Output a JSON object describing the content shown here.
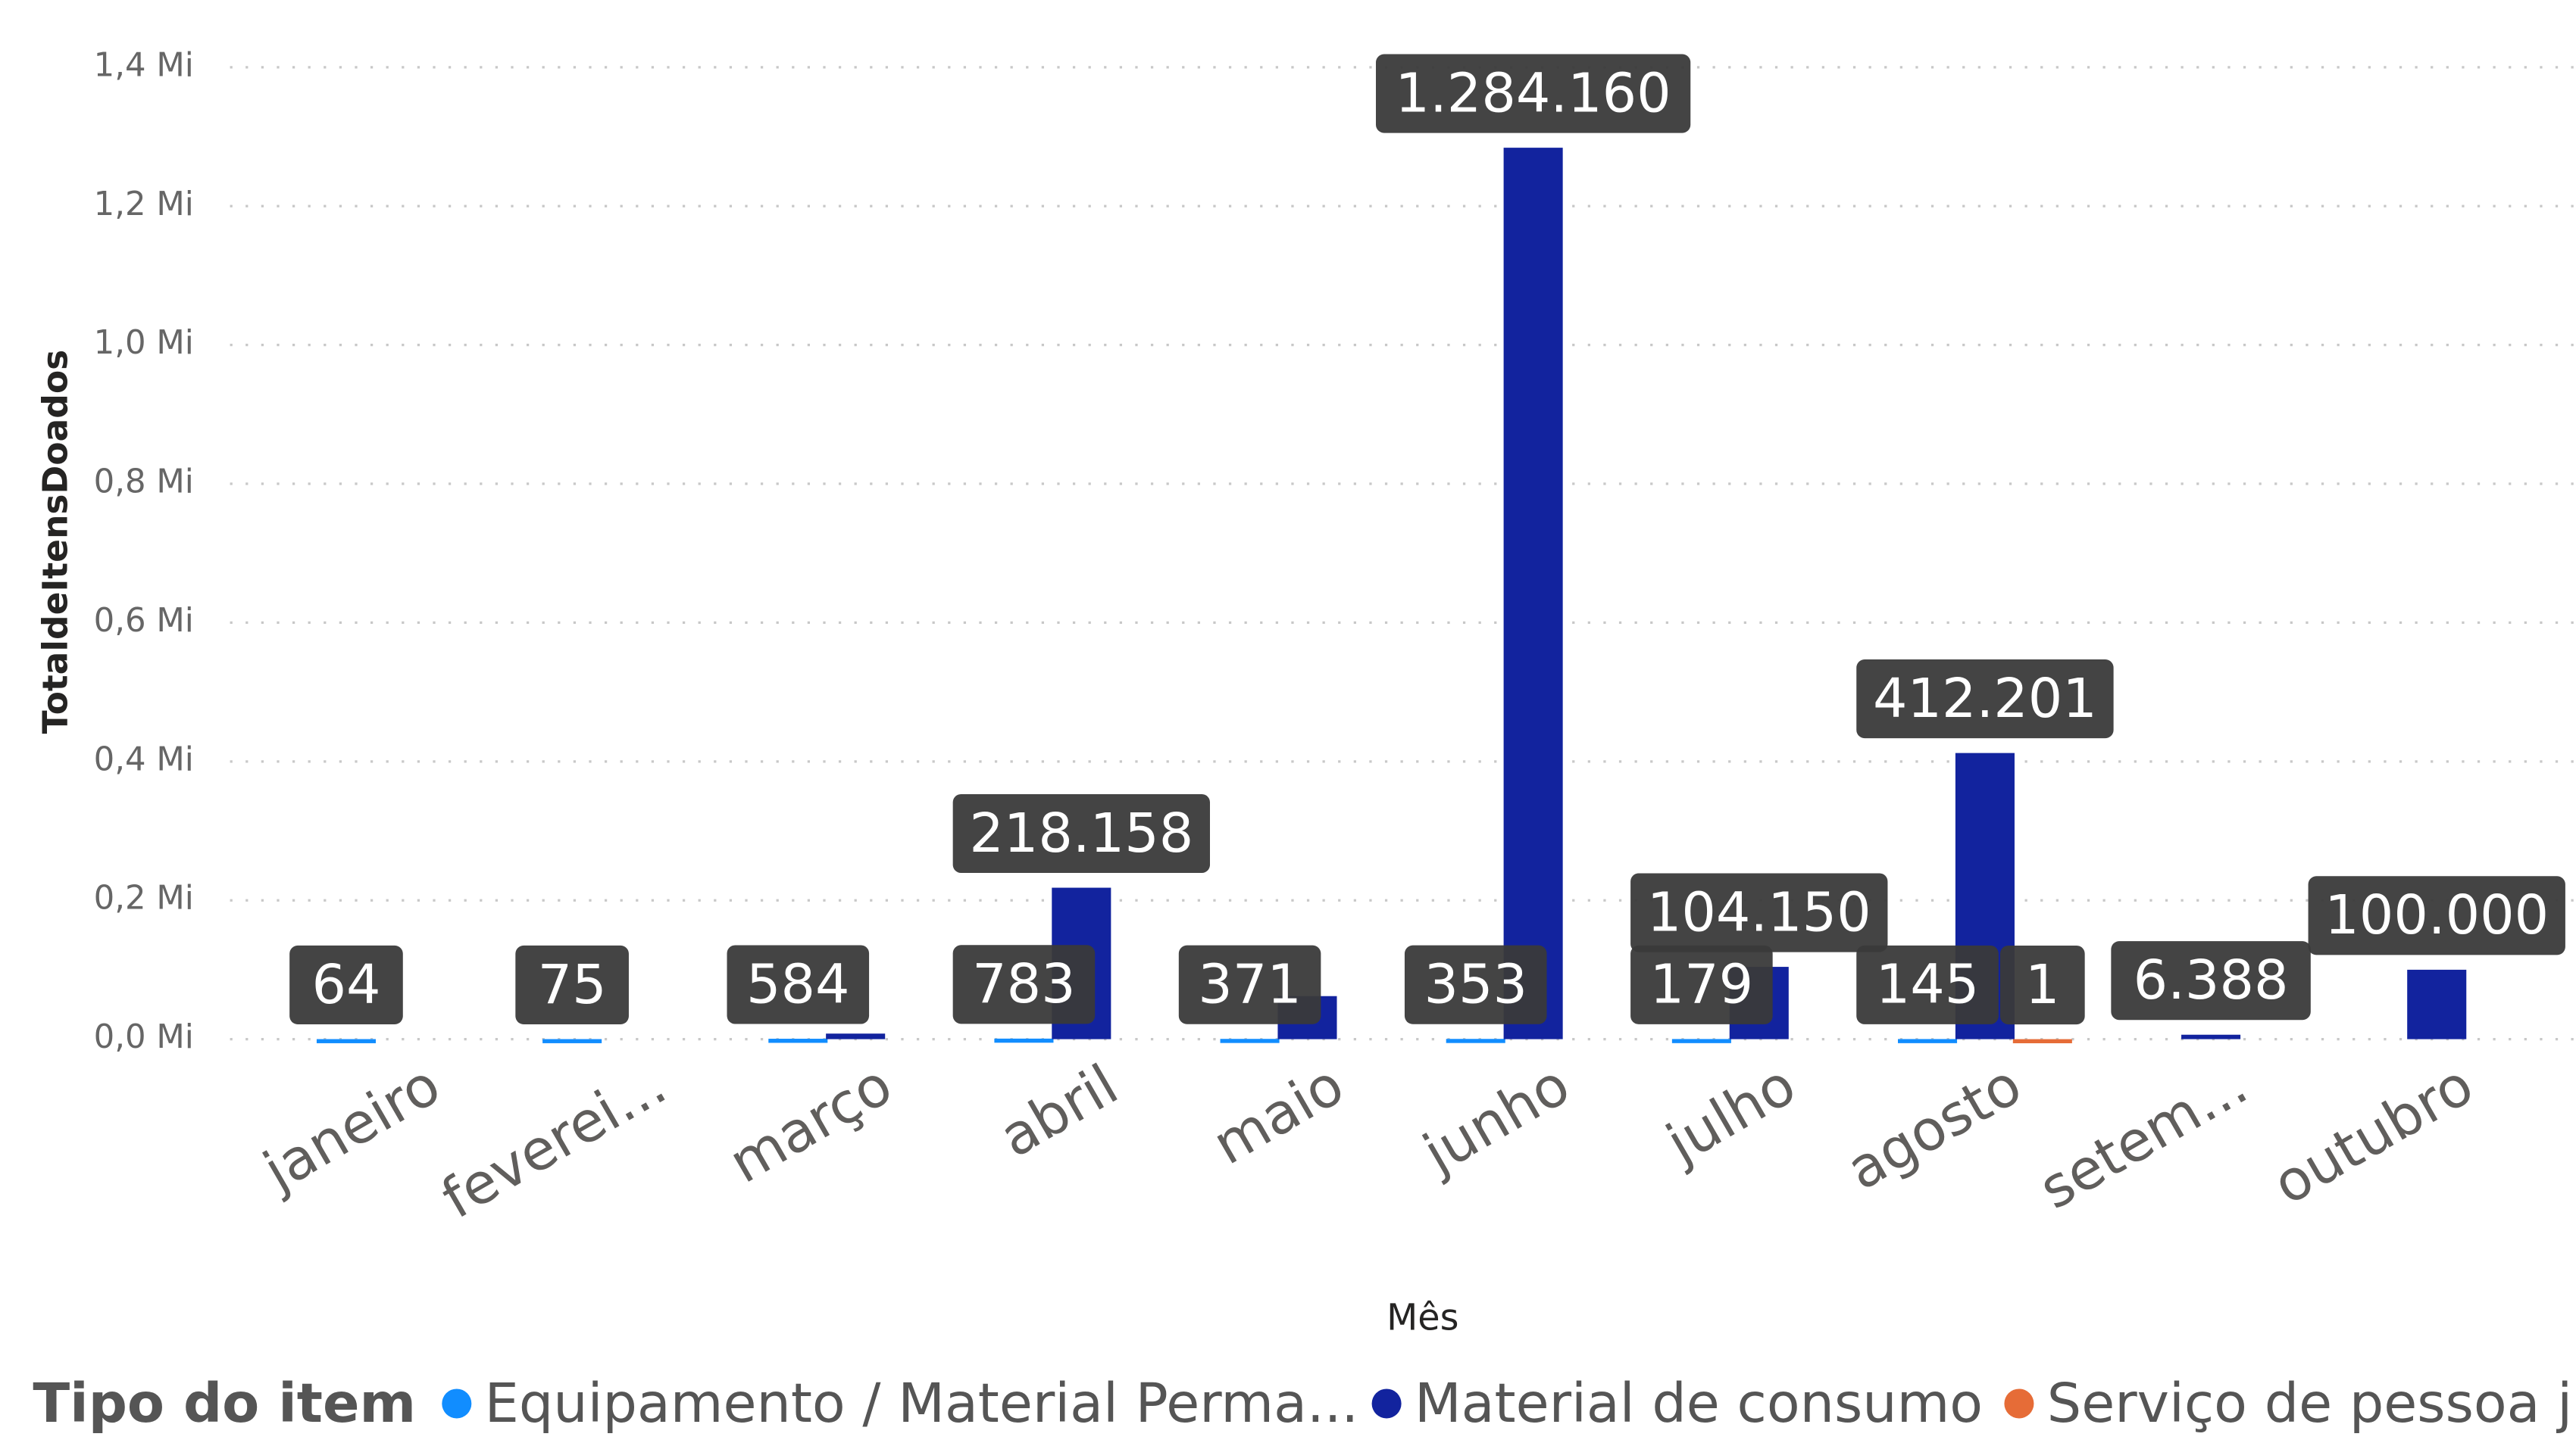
{
  "chart_data": {
    "type": "bar",
    "x_label": "Mês",
    "y_label": "TotaldeItensDoados",
    "legend_title": "Tipo do item",
    "categories": [
      "janeiro",
      "feverei...",
      "março",
      "abril",
      "maio",
      "junho",
      "julho",
      "agosto",
      "setem...",
      "outubro"
    ],
    "series": [
      {
        "name": "Equipamento / Material Perma...",
        "color": "#118DFF",
        "values": [
          64,
          75,
          584,
          783,
          371,
          353,
          179,
          145,
          null,
          null
        ],
        "value_labels": [
          "64",
          "75",
          "584",
          "783",
          "371",
          "353",
          "179",
          "145",
          null,
          null
        ]
      },
      {
        "name": "Material de consumo",
        "color": "#12239E",
        "values": [
          null,
          null,
          8000,
          218158,
          62000,
          1284160,
          104150,
          412201,
          6388,
          100000
        ],
        "value_labels": [
          null,
          null,
          null,
          "218.158",
          null,
          "1.284.160",
          "104.150",
          "412.201",
          "6.388",
          "100.000"
        ]
      },
      {
        "name": "Serviço de pessoa j...",
        "color": "#E66C37",
        "values": [
          null,
          null,
          null,
          null,
          null,
          null,
          null,
          1,
          null,
          null
        ],
        "value_labels": [
          null,
          null,
          null,
          null,
          null,
          null,
          null,
          "1",
          null,
          null
        ]
      }
    ],
    "ylim": [
      0,
      1400000
    ],
    "yticks": [
      {
        "value": 0,
        "label": "0,0 Mi"
      },
      {
        "value": 200000,
        "label": "0,2 Mi"
      },
      {
        "value": 400000,
        "label": "0,4 Mi"
      },
      {
        "value": 600000,
        "label": "0,6 Mi"
      },
      {
        "value": 800000,
        "label": "0,8 Mi"
      },
      {
        "value": 1000000,
        "label": "1,0 Mi"
      },
      {
        "value": 1200000,
        "label": "1,2 Mi"
      },
      {
        "value": 1400000,
        "label": "1,4 Mi"
      }
    ],
    "grid": true,
    "legend": "bottom-left"
  }
}
